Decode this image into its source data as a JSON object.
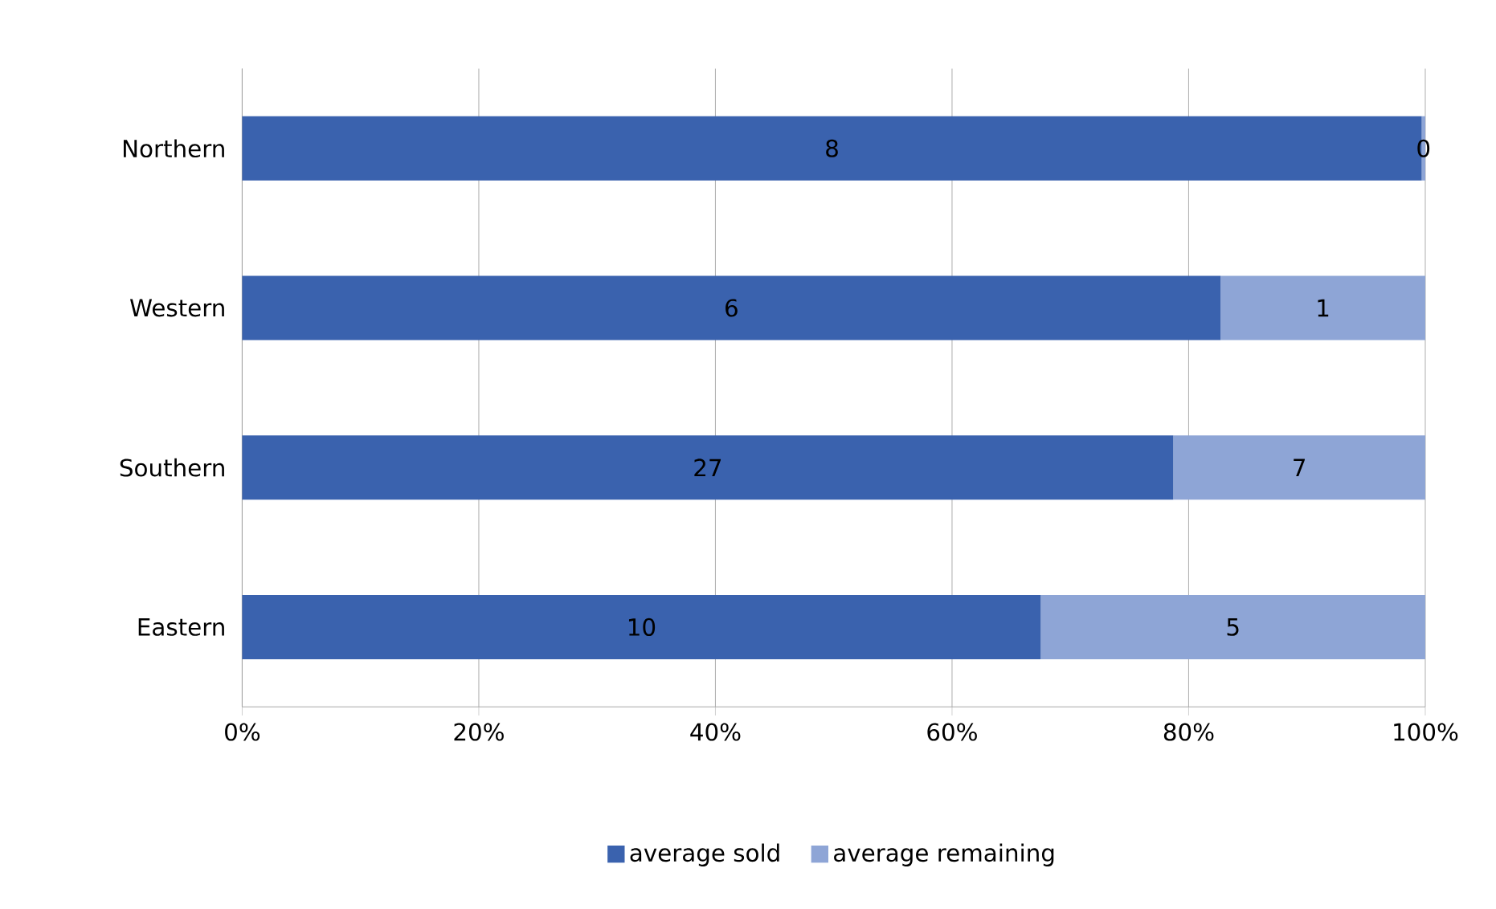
{
  "chart_data": {
    "type": "bar",
    "orientation": "horizontal",
    "stacked": true,
    "categories": [
      "Northern",
      "Western",
      "Southern",
      "Eastern"
    ],
    "series": [
      {
        "name": "average sold",
        "color": "#3a62ae",
        "values": [
          99.7,
          82.7,
          78.7,
          67.5
        ]
      },
      {
        "name": "average remaining",
        "color": "#8ea5d6",
        "values": [
          0.3,
          17.3,
          21.3,
          32.5
        ]
      }
    ],
    "annotations": [
      "8",
      "0",
      "6",
      "1",
      "27",
      "7",
      "10",
      "5"
    ],
    "xlim": [
      0,
      100
    ],
    "xticks": [
      {
        "value": 0,
        "label": "0%"
      },
      {
        "value": 20,
        "label": "20%"
      },
      {
        "value": 40,
        "label": "40%"
      },
      {
        "value": 60,
        "label": "60%"
      },
      {
        "value": 80,
        "label": "80%"
      },
      {
        "value": 100,
        "label": "100%"
      }
    ],
    "grid": "x",
    "legend": "bottom"
  }
}
